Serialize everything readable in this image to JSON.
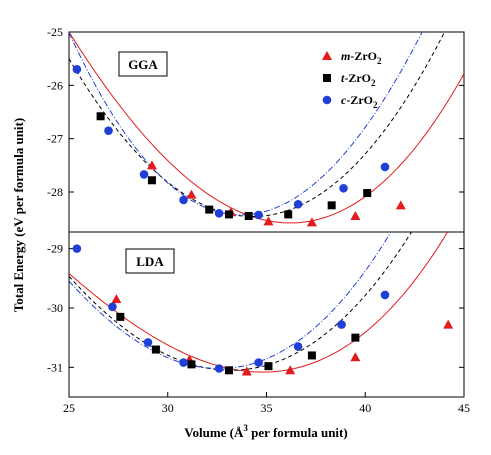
{
  "chart_data": [
    {
      "type": "scatter",
      "panel_label": "GGA",
      "xlabel": "",
      "ylabel": "",
      "xlim": [
        25,
        45
      ],
      "ylim": [
        -28.75,
        -25
      ],
      "y_ticks": [
        -25,
        -26,
        -27,
        -28
      ],
      "x_ticks": [],
      "x_tick_labels": [],
      "legend_location": "top-right",
      "series": [
        {
          "name": "m-ZrO2",
          "marker": "triangle",
          "color": "#e41a1c",
          "line_style": "solid",
          "x": [
            29.2,
            31.2,
            33.2,
            35.1,
            37.3,
            39.5,
            41.8
          ],
          "y": [
            -27.5,
            -28.05,
            -28.38,
            -28.55,
            -28.57,
            -28.45,
            -28.25
          ],
          "fit": {
            "x0": 36.2,
            "y0": -28.58,
            "a": 0.0328,
            "b": 0.00038
          }
        },
        {
          "name": "t-ZrO2",
          "marker": "square",
          "color": "#000000",
          "line_style": "dashed",
          "x": [
            26.6,
            29.2,
            32.1,
            33.1,
            34.1,
            36.1,
            38.3,
            40.1
          ],
          "y": [
            -26.58,
            -27.78,
            -28.33,
            -28.42,
            -28.45,
            -28.42,
            -28.25,
            -28.02
          ],
          "fit": {
            "x0": 34.3,
            "y0": -28.46,
            "a": 0.0354,
            "b": 0.00013
          }
        },
        {
          "name": "c-ZrO2",
          "marker": "circle",
          "color": "#1f3fd6",
          "line_style": "dash-dot",
          "x": [
            25.4,
            27.0,
            28.8,
            30.8,
            32.6,
            34.6,
            36.6,
            38.9,
            41.0
          ],
          "y": [
            -25.7,
            -26.85,
            -27.67,
            -28.15,
            -28.4,
            -28.43,
            -28.23,
            -27.93,
            -27.53
          ],
          "fit": {
            "x0": 33.7,
            "y0": -28.43,
            "a": 0.043,
            "b": -0.00025
          }
        }
      ]
    },
    {
      "type": "scatter",
      "panel_label": "LDA",
      "xlabel": "Volume (Å3 per formula unit)",
      "ylabel": "",
      "xlim": [
        25,
        45
      ],
      "ylim": [
        -31.5,
        -28.72
      ],
      "y_ticks": [
        -29,
        -30,
        -31
      ],
      "x_ticks": [
        25,
        30,
        35,
        40,
        45
      ],
      "x_tick_labels": [
        "25",
        "30",
        "35",
        "40",
        "45"
      ],
      "series": [
        {
          "name": "m-ZrO2",
          "marker": "triangle",
          "color": "#e41a1c",
          "line_style": "solid",
          "x": [
            27.4,
            31.1,
            34.0,
            36.2,
            39.5,
            44.2
          ],
          "y": [
            -29.85,
            -30.87,
            -31.07,
            -31.05,
            -30.83,
            -30.28
          ],
          "fit": {
            "x0": 34.8,
            "y0": -31.08,
            "a": 0.0222,
            "b": 0.0005
          }
        },
        {
          "name": "t-ZrO2",
          "marker": "square",
          "color": "#000000",
          "line_style": "dashed",
          "x": [
            27.6,
            29.4,
            31.2,
            33.1,
            35.1,
            37.3,
            39.5
          ],
          "y": [
            -30.15,
            -30.7,
            -30.95,
            -31.05,
            -30.98,
            -30.8,
            -30.5
          ],
          "fit": {
            "x0": 33.2,
            "y0": -31.05,
            "a": 0.0256,
            "b": 0.00025
          }
        },
        {
          "name": "c-ZrO2",
          "marker": "circle",
          "color": "#1f3fd6",
          "line_style": "dash-dot",
          "x": [
            25.4,
            27.2,
            29.0,
            30.8,
            32.6,
            34.6,
            36.6,
            38.8,
            41.0
          ],
          "y": [
            -29.0,
            -29.98,
            -30.58,
            -30.92,
            -31.02,
            -30.92,
            -30.65,
            -30.28,
            -29.78
          ],
          "fit": {
            "x0": 32.6,
            "y0": -31.02,
            "a": 0.0278,
            "b": 0.0003
          }
        }
      ]
    }
  ],
  "shared_ylabel": "Total Energy (eV per formula unit)",
  "legend": [
    {
      "prefix": "m",
      "suffix": "-ZrO",
      "sub": "2"
    },
    {
      "prefix": "t",
      "suffix": "-ZrO",
      "sub": "2"
    },
    {
      "prefix": "c",
      "suffix": "-ZrO",
      "sub": "2"
    }
  ],
  "xlabel_parts": {
    "before": "Volume (Å",
    "sup": "3",
    "after": " per formula unit)"
  }
}
